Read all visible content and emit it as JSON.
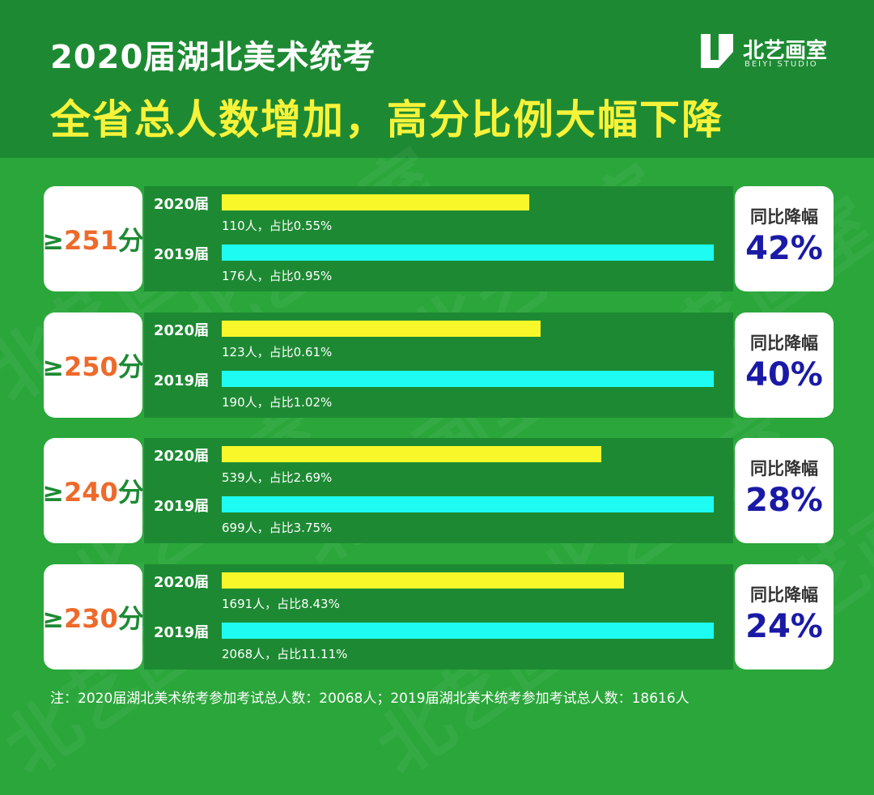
{
  "header": {
    "title_line1": "2020届湖北美术统考",
    "title_line2": "全省总人数增加，高分比例大幅下降"
  },
  "logo": {
    "name": "北艺画室",
    "sub": "BEIYI STUDIO"
  },
  "colors": {
    "background": "#2aa63a",
    "band": "#1d8a33",
    "bar_2020": "#f8f72a",
    "bar_2019": "#1dfbf2",
    "score_number": "#ee6a2a",
    "drop_value": "#1a1aa6"
  },
  "chart_data": {
    "type": "bar",
    "orientation": "horizontal",
    "series_names": [
      "2020届",
      "2019届"
    ],
    "drop_label": "同比降幅",
    "groups": [
      {
        "score_symbol": "≥",
        "score": "251",
        "score_unit": "分",
        "series": [
          {
            "name": "2020届",
            "count": 110,
            "caption": "110人，占比0.55%"
          },
          {
            "name": "2019届",
            "count": 176,
            "caption": "176人，占比0.95%"
          }
        ],
        "drop": "42%"
      },
      {
        "score_symbol": "≥",
        "score": "250",
        "score_unit": "分",
        "series": [
          {
            "name": "2020届",
            "count": 123,
            "caption": "123人，占比0.61%"
          },
          {
            "name": "2019届",
            "count": 190,
            "caption": "190人，占比1.02%"
          }
        ],
        "drop": "40%"
      },
      {
        "score_symbol": "≥",
        "score": "240",
        "score_unit": "分",
        "series": [
          {
            "name": "2020届",
            "count": 539,
            "caption": "539人，占比2.69%"
          },
          {
            "name": "2019届",
            "count": 699,
            "caption": "699人，占比3.75%"
          }
        ],
        "drop": "28%"
      },
      {
        "score_symbol": "≥",
        "score": "230",
        "score_unit": "分",
        "series": [
          {
            "name": "2020届",
            "count": 1691,
            "caption": "1691人，占比8.43%"
          },
          {
            "name": "2019届",
            "count": 2068,
            "caption": "2068人，占比11.11%"
          }
        ],
        "drop": "24%"
      }
    ]
  },
  "footnote": "注：2020届湖北美术统考参加考试总人数：20068人；2019届湖北美术统考参加考试总人数：18616人"
}
